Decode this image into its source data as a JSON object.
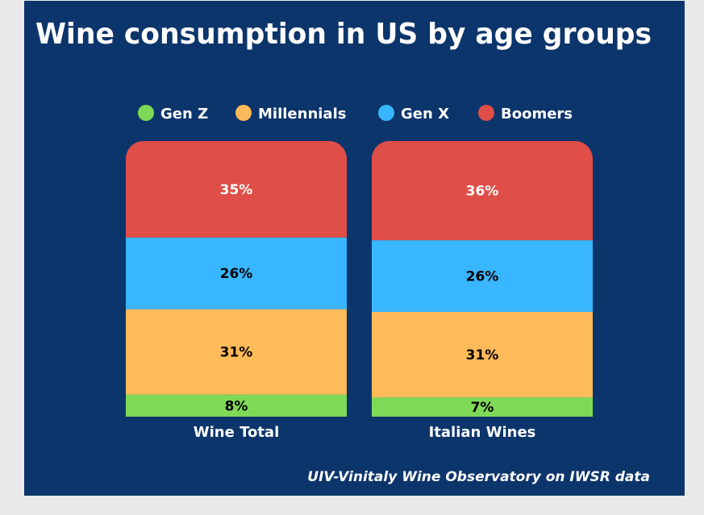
{
  "chart_data": {
    "type": "stacked-bar",
    "title": "Wine consumption in US by age groups",
    "categories": [
      "Wine Total",
      "Italian Wines"
    ],
    "series": [
      {
        "name": "Gen Z",
        "color": "#7ed957",
        "values": [
          8,
          7
        ],
        "labels": [
          "8%",
          "7%"
        ]
      },
      {
        "name": "Millennials",
        "color": "#ffba5a",
        "values": [
          31,
          31
        ],
        "labels": [
          "31%",
          "31%"
        ]
      },
      {
        "name": "Gen X",
        "color": "#38b6ff",
        "values": [
          26,
          26
        ],
        "labels": [
          "26%",
          "26%"
        ]
      },
      {
        "name": "Boomers",
        "color": "#e04e48",
        "values": [
          35,
          36
        ],
        "labels": [
          "35%",
          "36%"
        ]
      }
    ],
    "ylim": [
      0,
      100
    ],
    "legend": "top",
    "grid": false,
    "source": "UIV-Vinitaly Wine Observatory on IWSR data"
  },
  "colors": {
    "background": "#0c356b",
    "text": "#ffffff"
  }
}
